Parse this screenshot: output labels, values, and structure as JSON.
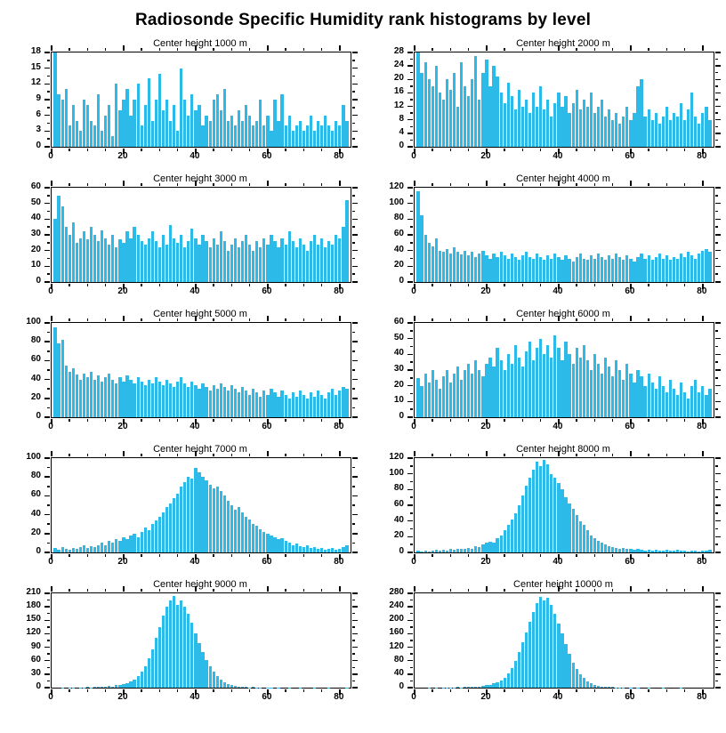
{
  "title": "Radiosonde Specific Humidity rank histograms by level",
  "bar_color": "#2cbae8",
  "axis_color": "#000000",
  "chart_data": [
    {
      "type": "bar",
      "title": "Center height 1000 m",
      "ylim": [
        0,
        18
      ],
      "ytick": 3,
      "xlim": [
        0,
        83
      ],
      "xticks": [
        0,
        20,
        40,
        60,
        80
      ],
      "xminor": 5,
      "values": [
        18,
        10,
        9,
        11,
        4,
        8,
        5,
        3,
        9,
        8,
        5,
        4,
        10,
        3,
        6,
        8,
        2,
        12,
        7,
        9,
        11,
        6,
        9,
        12,
        4,
        8,
        13,
        5,
        9,
        14,
        7,
        9,
        5,
        8,
        3,
        15,
        9,
        6,
        10,
        7,
        8,
        4,
        6,
        5,
        9,
        10,
        7,
        11,
        5,
        6,
        4,
        7,
        5,
        8,
        6,
        4,
        5,
        9,
        4,
        6,
        3,
        9,
        5,
        10,
        4,
        6,
        3,
        4,
        5,
        3,
        4,
        6,
        3,
        5,
        4,
        6,
        4,
        3,
        5,
        4,
        8,
        5
      ]
    },
    {
      "type": "bar",
      "title": "Center height 2000 m",
      "ylim": [
        0,
        28
      ],
      "ytick": 4,
      "xlim": [
        0,
        83
      ],
      "xticks": [
        0,
        20,
        40,
        60,
        80
      ],
      "xminor": 5,
      "values": [
        28,
        22,
        25,
        20,
        18,
        24,
        16,
        14,
        20,
        17,
        22,
        12,
        25,
        18,
        15,
        20,
        27,
        14,
        22,
        26,
        18,
        24,
        21,
        16,
        13,
        19,
        15,
        11,
        17,
        12,
        14,
        10,
        16,
        12,
        18,
        11,
        14,
        9,
        13,
        16,
        12,
        15,
        10,
        13,
        17,
        11,
        14,
        12,
        16,
        10,
        12,
        14,
        9,
        11,
        8,
        10,
        7,
        9,
        12,
        8,
        10,
        18,
        20,
        9,
        11,
        8,
        10,
        7,
        9,
        12,
        8,
        10,
        9,
        13,
        8,
        11,
        16,
        9,
        7,
        10,
        12,
        8
      ]
    },
    {
      "type": "bar",
      "title": "Center height 3000 m",
      "ylim": [
        0,
        60
      ],
      "ytick": 10,
      "xlim": [
        0,
        83
      ],
      "xticks": [
        0,
        20,
        40,
        60,
        80
      ],
      "xminor": 5,
      "values": [
        40,
        55,
        48,
        35,
        30,
        38,
        25,
        28,
        32,
        27,
        35,
        30,
        26,
        33,
        28,
        24,
        30,
        22,
        27,
        25,
        32,
        28,
        35,
        30,
        26,
        24,
        28,
        32,
        26,
        22,
        30,
        24,
        36,
        28,
        25,
        30,
        22,
        26,
        34,
        28,
        24,
        30,
        26,
        22,
        28,
        24,
        32,
        26,
        20,
        24,
        28,
        22,
        26,
        30,
        24,
        20,
        26,
        22,
        28,
        24,
        30,
        26,
        22,
        28,
        24,
        32,
        26,
        22,
        28,
        24,
        20,
        26,
        30,
        24,
        28,
        22,
        26,
        24,
        30,
        28,
        35,
        52
      ]
    },
    {
      "type": "bar",
      "title": "Center height 4000 m",
      "ylim": [
        0,
        120
      ],
      "ytick": 20,
      "xlim": [
        0,
        83
      ],
      "xticks": [
        0,
        20,
        40,
        60,
        80
      ],
      "xminor": 5,
      "values": [
        115,
        85,
        60,
        50,
        45,
        55,
        40,
        38,
        42,
        36,
        44,
        38,
        35,
        40,
        34,
        38,
        32,
        36,
        40,
        34,
        30,
        36,
        32,
        38,
        34,
        30,
        36,
        32,
        28,
        34,
        38,
        32,
        30,
        36,
        32,
        28,
        34,
        30,
        36,
        32,
        28,
        34,
        30,
        26,
        32,
        36,
        30,
        28,
        34,
        30,
        36,
        32,
        28,
        34,
        30,
        36,
        32,
        28,
        34,
        30,
        26,
        32,
        36,
        30,
        34,
        28,
        32,
        36,
        30,
        34,
        28,
        32,
        30,
        36,
        32,
        38,
        34,
        30,
        36,
        40,
        42,
        38
      ]
    },
    {
      "type": "bar",
      "title": "Center height 5000 m",
      "ylim": [
        0,
        100
      ],
      "ytick": 20,
      "xlim": [
        0,
        83
      ],
      "xticks": [
        0,
        20,
        40,
        60,
        80
      ],
      "xminor": 5,
      "values": [
        95,
        78,
        82,
        55,
        48,
        52,
        45,
        40,
        46,
        42,
        48,
        40,
        44,
        38,
        42,
        46,
        40,
        36,
        42,
        38,
        44,
        40,
        36,
        42,
        38,
        34,
        40,
        36,
        42,
        38,
        34,
        40,
        36,
        32,
        38,
        42,
        36,
        32,
        38,
        34,
        30,
        36,
        32,
        28,
        34,
        30,
        36,
        32,
        28,
        34,
        30,
        26,
        32,
        28,
        24,
        30,
        26,
        22,
        28,
        24,
        30,
        26,
        22,
        28,
        24,
        20,
        26,
        22,
        28,
        24,
        20,
        26,
        22,
        28,
        24,
        20,
        26,
        30,
        24,
        28,
        32,
        30
      ]
    },
    {
      "type": "bar",
      "title": "Center height 6000 m",
      "ylim": [
        0,
        60
      ],
      "ytick": 10,
      "xlim": [
        0,
        83
      ],
      "xticks": [
        0,
        20,
        40,
        60,
        80
      ],
      "xminor": 5,
      "values": [
        25,
        20,
        28,
        22,
        30,
        24,
        18,
        26,
        30,
        22,
        28,
        32,
        24,
        30,
        34,
        28,
        36,
        30,
        26,
        34,
        38,
        32,
        44,
        36,
        30,
        40,
        34,
        46,
        38,
        32,
        42,
        48,
        36,
        44,
        50,
        40,
        46,
        38,
        52,
        44,
        36,
        48,
        40,
        34,
        44,
        38,
        46,
        36,
        30,
        40,
        34,
        28,
        38,
        32,
        26,
        36,
        30,
        24,
        34,
        28,
        22,
        30,
        26,
        20,
        28,
        22,
        18,
        26,
        20,
        16,
        24,
        18,
        14,
        22,
        16,
        12,
        20,
        24,
        16,
        20,
        14,
        18
      ]
    },
    {
      "type": "bar",
      "title": "Center height 7000 m",
      "ylim": [
        0,
        100
      ],
      "ytick": 20,
      "xlim": [
        0,
        83
      ],
      "xticks": [
        0,
        20,
        40,
        60,
        80
      ],
      "xminor": 5,
      "values": [
        5,
        3,
        6,
        4,
        3,
        5,
        4,
        6,
        8,
        5,
        7,
        6,
        8,
        10,
        8,
        12,
        10,
        14,
        12,
        16,
        14,
        18,
        20,
        16,
        22,
        26,
        24,
        30,
        34,
        38,
        42,
        48,
        52,
        58,
        62,
        70,
        75,
        80,
        78,
        90,
        85,
        80,
        76,
        72,
        68,
        70,
        65,
        60,
        55,
        50,
        45,
        48,
        42,
        38,
        35,
        30,
        28,
        25,
        22,
        20,
        18,
        16,
        14,
        15,
        12,
        10,
        8,
        9,
        7,
        6,
        8,
        5,
        6,
        4,
        5,
        3,
        4,
        5,
        3,
        4,
        6,
        8
      ]
    },
    {
      "type": "bar",
      "title": "Center height 8000 m",
      "ylim": [
        0,
        120
      ],
      "ytick": 20,
      "xlim": [
        0,
        83
      ],
      "xticks": [
        0,
        20,
        40,
        60,
        80
      ],
      "xminor": 5,
      "values": [
        2,
        1,
        2,
        1,
        2,
        3,
        2,
        3,
        2,
        4,
        3,
        4,
        5,
        4,
        6,
        5,
        8,
        7,
        10,
        12,
        14,
        12,
        18,
        22,
        28,
        35,
        42,
        50,
        60,
        72,
        85,
        95,
        105,
        115,
        110,
        118,
        112,
        100,
        95,
        88,
        80,
        70,
        62,
        55,
        48,
        40,
        35,
        28,
        22,
        18,
        15,
        12,
        10,
        8,
        7,
        6,
        5,
        6,
        4,
        5,
        3,
        4,
        3,
        2,
        3,
        2,
        3,
        2,
        2,
        3,
        2,
        2,
        3,
        2,
        2,
        1,
        2,
        2,
        1,
        2,
        2,
        3
      ]
    },
    {
      "type": "bar",
      "title": "Center height 9000 m",
      "ylim": [
        0,
        210
      ],
      "ytick": 30,
      "xlim": [
        0,
        83
      ],
      "xticks": [
        0,
        20,
        40,
        60,
        80
      ],
      "xminor": 5,
      "values": [
        0,
        0,
        1,
        0,
        1,
        1,
        0,
        1,
        1,
        2,
        1,
        2,
        2,
        3,
        2,
        4,
        3,
        5,
        6,
        8,
        10,
        14,
        18,
        25,
        35,
        48,
        65,
        85,
        110,
        135,
        160,
        180,
        195,
        205,
        185,
        195,
        180,
        165,
        145,
        120,
        100,
        80,
        62,
        48,
        35,
        25,
        18,
        12,
        8,
        6,
        4,
        3,
        2,
        2,
        1,
        2,
        1,
        1,
        0,
        1,
        1,
        0,
        1,
        0,
        0,
        1,
        0,
        0,
        1,
        0,
        0,
        0,
        1,
        0,
        0,
        0,
        1,
        0,
        0,
        0,
        0,
        1
      ]
    },
    {
      "type": "bar",
      "title": "Center height 10000 m",
      "ylim": [
        0,
        280
      ],
      "ytick": 40,
      "xlim": [
        0,
        83
      ],
      "xticks": [
        0,
        20,
        40,
        60,
        80
      ],
      "xminor": 5,
      "values": [
        0,
        0,
        0,
        1,
        0,
        1,
        0,
        1,
        1,
        1,
        1,
        2,
        1,
        2,
        2,
        3,
        3,
        4,
        5,
        7,
        9,
        12,
        16,
        22,
        30,
        42,
        58,
        80,
        105,
        135,
        165,
        195,
        225,
        250,
        270,
        260,
        268,
        245,
        220,
        190,
        160,
        130,
        100,
        75,
        55,
        40,
        28,
        18,
        12,
        8,
        5,
        4,
        3,
        2,
        2,
        1,
        1,
        1,
        0,
        1,
        0,
        1,
        0,
        0,
        1,
        0,
        0,
        0,
        1,
        0,
        0,
        0,
        0,
        1,
        0,
        0,
        0,
        0,
        0,
        0,
        0,
        0
      ]
    }
  ]
}
